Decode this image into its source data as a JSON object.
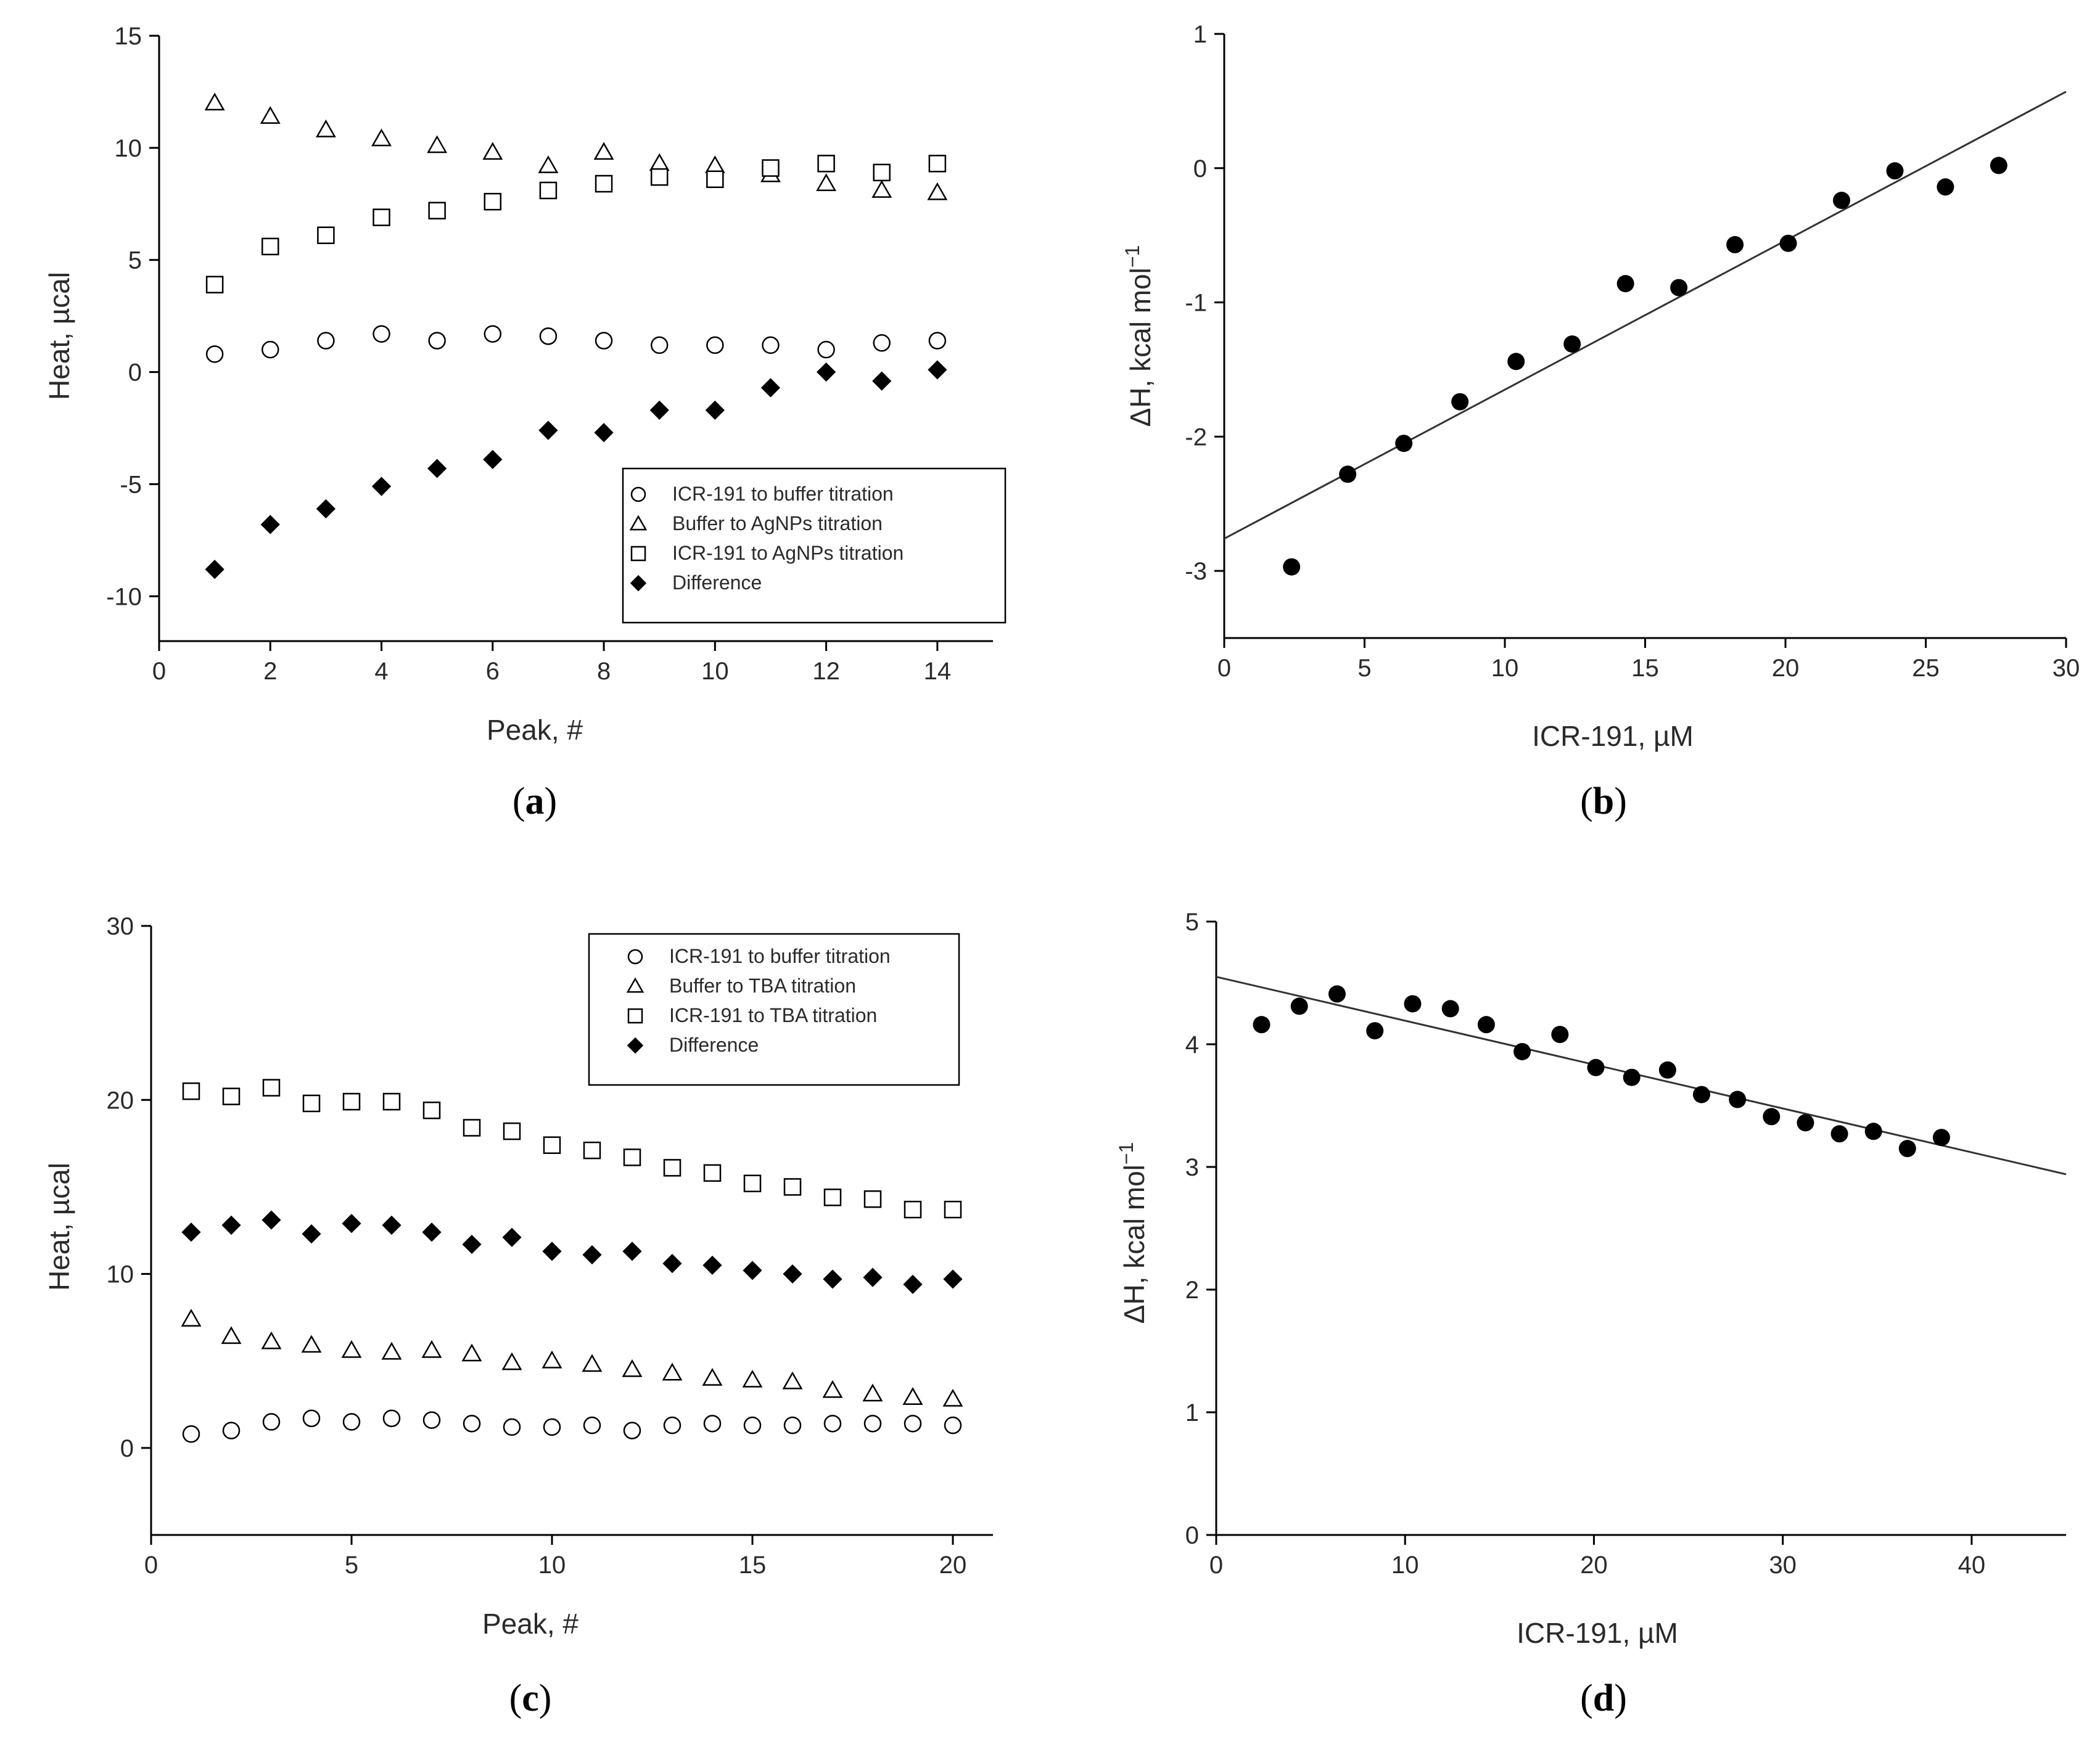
{
  "chart_data": [
    {
      "type": "scatter",
      "panel": "(a)",
      "panel_prefix": "(",
      "panel_letter": "a",
      "panel_suffix": ")",
      "xlabel": "Peak, #",
      "ylabel": "Heat, µcal",
      "xlim": [
        0,
        15
      ],
      "ylim": [
        -12,
        15
      ],
      "xticks": [
        0,
        2,
        4,
        6,
        8,
        10,
        12,
        14
      ],
      "yticks": [
        -10,
        -5,
        0,
        5,
        10,
        15
      ],
      "legend_position": "bottom-right",
      "series": [
        {
          "name": "ICR-191 to buffer titration",
          "marker": "circle",
          "x": [
            1,
            2,
            3,
            4,
            5,
            6,
            7,
            8,
            9,
            10,
            11,
            12,
            13,
            14
          ],
          "y": [
            0.8,
            1.0,
            1.4,
            1.7,
            1.4,
            1.7,
            1.6,
            1.4,
            1.2,
            1.2,
            1.2,
            1.0,
            1.3,
            1.4
          ]
        },
        {
          "name": "Buffer to AgNPs titration",
          "marker": "triangle",
          "x": [
            1,
            2,
            3,
            4,
            5,
            6,
            7,
            8,
            9,
            10,
            11,
            12,
            13,
            14
          ],
          "y": [
            12.0,
            11.4,
            10.8,
            10.4,
            10.1,
            9.8,
            9.2,
            9.8,
            9.3,
            9.2,
            8.8,
            8.4,
            8.1,
            8.0
          ]
        },
        {
          "name": "ICR-191 to AgNPs titration",
          "marker": "square",
          "x": [
            1,
            2,
            3,
            4,
            5,
            6,
            7,
            8,
            9,
            10,
            11,
            12,
            13,
            14
          ],
          "y": [
            3.9,
            5.6,
            6.1,
            6.9,
            7.2,
            7.6,
            8.1,
            8.4,
            8.7,
            8.6,
            9.1,
            9.3,
            8.9,
            9.3
          ]
        },
        {
          "name": "Difference",
          "marker": "diamond",
          "x": [
            1,
            2,
            3,
            4,
            5,
            6,
            7,
            8,
            9,
            10,
            11,
            12,
            13,
            14
          ],
          "y": [
            -8.8,
            -6.8,
            -6.1,
            -5.1,
            -4.3,
            -3.9,
            -2.6,
            -2.7,
            -1.7,
            -1.7,
            -0.7,
            0.0,
            -0.4,
            0.1
          ]
        }
      ]
    },
    {
      "type": "scatter",
      "panel": "(b)",
      "panel_prefix": "(",
      "panel_letter": "b",
      "panel_suffix": ")",
      "xlabel": "ICR-191, µM",
      "ylabel_main": "ΔH, kcal mol",
      "ylabel_sup": "−1",
      "xlim": [
        0,
        30
      ],
      "ylim": [
        -3.5,
        1
      ],
      "xticks": [
        0,
        5,
        10,
        15,
        20,
        25,
        30
      ],
      "yticks": [
        -3,
        -2,
        -1,
        0,
        1
      ],
      "series": [
        {
          "name": "data",
          "marker": "filled-circle",
          "x": [
            2.4,
            4.4,
            6.4,
            8.4,
            10.4,
            12.4,
            14.3,
            16.2,
            18.2,
            20.1,
            22.0,
            23.9,
            25.7,
            27.6
          ],
          "y": [
            -2.97,
            -2.28,
            -2.05,
            -1.74,
            -1.44,
            -1.31,
            -0.86,
            -0.89,
            -0.57,
            -0.56,
            -0.24,
            -0.02,
            -0.14,
            0.02
          ]
        }
      ],
      "fit_line": {
        "x": [
          0,
          30
        ],
        "y": [
          -2.76,
          0.57
        ]
      }
    },
    {
      "type": "scatter",
      "panel": "(c)",
      "panel_prefix": "(",
      "panel_letter": "c",
      "panel_suffix": ")",
      "xlabel": "Peak, #",
      "ylabel": "Heat, µcal",
      "xlim": [
        0,
        21
      ],
      "ylim": [
        -5,
        30
      ],
      "xticks": [
        0,
        5,
        10,
        15,
        20
      ],
      "yticks": [
        0,
        10,
        20,
        30
      ],
      "legend_position": "top-right",
      "series": [
        {
          "name": "ICR-191 to buffer titration",
          "marker": "circle",
          "x": [
            1,
            2,
            3,
            4,
            5,
            6,
            7,
            8,
            9,
            10,
            11,
            12,
            13,
            14,
            15,
            16,
            17,
            18,
            19,
            20
          ],
          "y": [
            0.8,
            1.0,
            1.5,
            1.7,
            1.5,
            1.7,
            1.6,
            1.4,
            1.2,
            1.2,
            1.3,
            1.0,
            1.3,
            1.4,
            1.3,
            1.3,
            1.4,
            1.4,
            1.4,
            1.3
          ]
        },
        {
          "name": "Buffer to TBA titration",
          "marker": "triangle",
          "x": [
            1,
            2,
            3,
            4,
            5,
            6,
            7,
            8,
            9,
            10,
            11,
            12,
            13,
            14,
            15,
            16,
            17,
            18,
            19,
            20
          ],
          "y": [
            7.4,
            6.4,
            6.1,
            5.9,
            5.6,
            5.5,
            5.6,
            5.4,
            4.9,
            5.0,
            4.8,
            4.5,
            4.3,
            4.0,
            3.9,
            3.8,
            3.3,
            3.1,
            2.9,
            2.8
          ]
        },
        {
          "name": "ICR-191 to TBA titration",
          "marker": "square",
          "x": [
            1,
            2,
            3,
            4,
            5,
            6,
            7,
            8,
            9,
            10,
            11,
            12,
            13,
            14,
            15,
            16,
            17,
            18,
            19,
            20
          ],
          "y": [
            20.5,
            20.2,
            20.7,
            19.8,
            19.9,
            19.9,
            19.4,
            18.4,
            18.2,
            17.4,
            17.1,
            16.7,
            16.1,
            15.8,
            15.2,
            15.0,
            14.4,
            14.3,
            13.7,
            13.7
          ]
        },
        {
          "name": "Difference",
          "marker": "diamond",
          "x": [
            1,
            2,
            3,
            4,
            5,
            6,
            7,
            8,
            9,
            10,
            11,
            12,
            13,
            14,
            15,
            16,
            17,
            18,
            19,
            20
          ],
          "y": [
            12.4,
            12.8,
            13.1,
            12.3,
            12.9,
            12.8,
            12.4,
            11.7,
            12.1,
            11.3,
            11.1,
            11.3,
            10.6,
            10.5,
            10.2,
            10.0,
            9.7,
            9.8,
            9.4,
            9.7
          ]
        }
      ]
    },
    {
      "type": "scatter",
      "panel": "(d)",
      "panel_prefix": "(",
      "panel_letter": "d",
      "panel_suffix": ")",
      "xlabel": "ICR-191, µM",
      "ylabel_main": "ΔH, kcal mol",
      "ylabel_sup": "−1",
      "xlim": [
        0,
        45
      ],
      "ylim": [
        0,
        5
      ],
      "xticks": [
        0,
        10,
        20,
        30,
        40
      ],
      "yticks": [
        0,
        1,
        2,
        3,
        4,
        5
      ],
      "series": [
        {
          "name": "data",
          "marker": "filled-circle",
          "x": [
            2.4,
            4.4,
            6.4,
            8.4,
            10.4,
            12.4,
            14.3,
            16.2,
            18.2,
            20.1,
            22.0,
            23.9,
            25.7,
            27.6,
            29.4,
            31.2,
            33.0,
            34.8,
            36.6,
            38.4
          ],
          "y": [
            4.16,
            4.31,
            4.41,
            4.11,
            4.33,
            4.29,
            4.16,
            3.94,
            4.08,
            3.81,
            3.73,
            3.79,
            3.59,
            3.55,
            3.41,
            3.36,
            3.27,
            3.29,
            3.15,
            3.24
          ]
        }
      ],
      "fit_line": {
        "x": [
          0,
          45
        ],
        "y": [
          4.55,
          2.94
        ]
      }
    }
  ]
}
